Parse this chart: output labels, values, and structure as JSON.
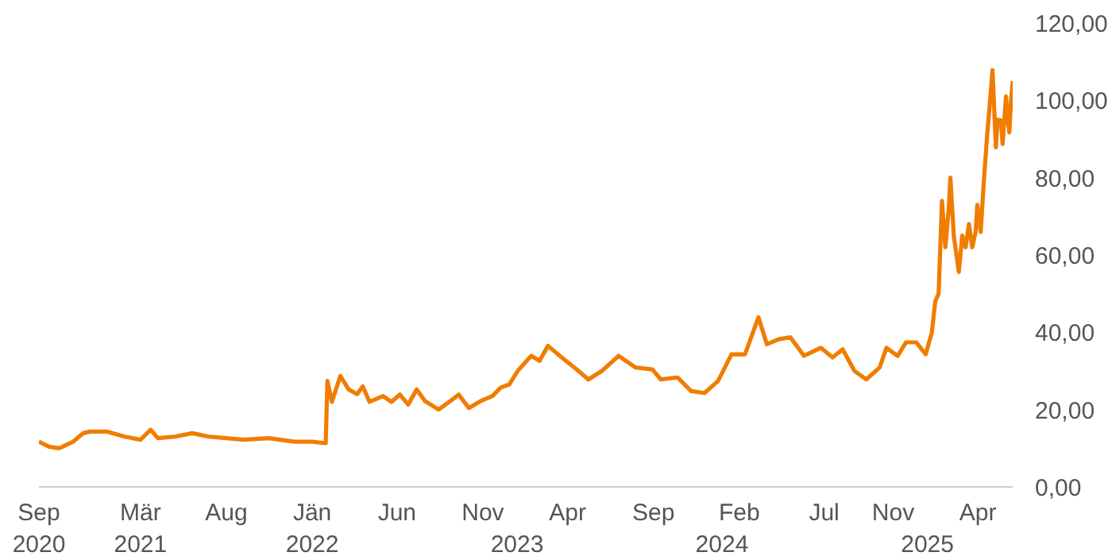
{
  "chart_data": {
    "type": "line",
    "x": [
      "2020-09-01",
      "2020-09-19",
      "2020-10-07",
      "2020-11-01",
      "2020-11-19",
      "2020-12-01",
      "2021-01-01",
      "2021-02-01",
      "2021-03-01",
      "2021-03-19",
      "2021-04-01",
      "2021-05-01",
      "2021-06-01",
      "2021-07-01",
      "2021-08-01",
      "2021-09-01",
      "2021-10-15",
      "2021-12-01",
      "2022-01-01",
      "2022-01-25",
      "2022-01-28",
      "2022-02-05",
      "2022-02-20",
      "2022-03-07",
      "2022-03-22",
      "2022-04-01",
      "2022-04-13",
      "2022-05-07",
      "2022-05-22",
      "2022-06-06",
      "2022-06-21",
      "2022-07-06",
      "2022-07-21",
      "2022-08-14",
      "2022-09-04",
      "2022-09-19",
      "2022-10-07",
      "2022-10-28",
      "2022-11-18",
      "2022-12-03",
      "2022-12-18",
      "2023-01-02",
      "2023-01-26",
      "2023-02-10",
      "2023-02-25",
      "2023-03-18",
      "2023-04-17",
      "2023-05-08",
      "2023-06-01",
      "2023-07-01",
      "2023-07-31",
      "2023-08-30",
      "2023-09-14",
      "2023-10-14",
      "2023-11-07",
      "2023-12-01",
      "2023-12-25",
      "2024-01-18",
      "2024-02-11",
      "2024-03-06",
      "2024-03-21",
      "2024-04-11",
      "2024-05-02",
      "2024-05-26",
      "2024-06-25",
      "2024-07-16",
      "2024-08-03",
      "2024-08-24",
      "2024-09-14",
      "2024-10-08",
      "2024-10-20",
      "2024-11-09",
      "2024-11-24",
      "2024-12-12",
      "2024-12-29",
      "2025-01-09",
      "2025-01-15",
      "2025-01-21",
      "2025-01-27",
      "2025-02-02",
      "2025-02-08",
      "2025-02-11",
      "2025-02-17",
      "2025-02-26",
      "2025-03-04",
      "2025-03-10",
      "2025-03-16",
      "2025-03-22",
      "2025-03-28",
      "2025-03-31",
      "2025-04-06",
      "2025-04-12",
      "2025-04-18",
      "2025-04-21",
      "2025-04-27",
      "2025-04-30",
      "2025-05-03",
      "2025-05-06",
      "2025-05-12",
      "2025-05-15",
      "2025-05-21",
      "2025-05-24",
      "2025-05-27",
      "2025-05-30",
      "2025-06-02"
    ],
    "series": [
      {
        "color": "#f07d00",
        "values": [
          11.7,
          10.4,
          10.0,
          11.7,
          13.9,
          14.3,
          14.3,
          13.0,
          12.2,
          14.8,
          12.6,
          13.0,
          13.9,
          13.0,
          12.6,
          12.2,
          12.6,
          11.7,
          11.7,
          11.3,
          27.4,
          22.0,
          28.7,
          25.2,
          24.0,
          26.0,
          22.0,
          23.5,
          22.0,
          23.9,
          21.3,
          25.2,
          22.2,
          20.0,
          22.2,
          23.9,
          20.4,
          22.2,
          23.5,
          25.7,
          26.5,
          30.0,
          33.9,
          32.6,
          36.5,
          33.9,
          30.4,
          27.8,
          30.0,
          33.9,
          30.9,
          30.4,
          27.8,
          28.3,
          24.8,
          24.3,
          27.4,
          34.3,
          34.3,
          43.9,
          36.9,
          38.2,
          38.7,
          33.9,
          36.0,
          33.5,
          35.6,
          30.0,
          27.8,
          30.9,
          36.0,
          33.9,
          37.4,
          37.4,
          34.3,
          40.0,
          48.0,
          50.0,
          74.0,
          62.0,
          72.0,
          80.0,
          65.0,
          55.6,
          65.0,
          62.0,
          68.0,
          62.0,
          66.0,
          73.0,
          66.0,
          80.0,
          92.0,
          97.0,
          107.8,
          98.0,
          87.8,
          95.0,
          94.8,
          88.7,
          101.0,
          95.0,
          91.7,
          100.0,
          105.0
        ]
      }
    ],
    "xticks": [
      {
        "value": "2020-09-01",
        "label": "Sep"
      },
      {
        "value": "2021-03-01",
        "label": "Mär"
      },
      {
        "value": "2021-08-01",
        "label": "Aug"
      },
      {
        "value": "2022-01-01",
        "label": "Jän"
      },
      {
        "value": "2022-06-01",
        "label": "Jun"
      },
      {
        "value": "2022-11-01",
        "label": "Nov"
      },
      {
        "value": "2023-04-01",
        "label": "Apr"
      },
      {
        "value": "2023-09-01",
        "label": "Sep"
      },
      {
        "value": "2024-02-01",
        "label": "Feb"
      },
      {
        "value": "2024-07-01",
        "label": "Jul"
      },
      {
        "value": "2024-11-01",
        "label": "Nov"
      },
      {
        "value": "2025-04-01",
        "label": "Apr"
      }
    ],
    "xlim": [
      "2020-09-01",
      "2025-06-02"
    ],
    "x2lim": [
      "2020-09-01",
      "2025-06-02"
    ],
    "x2ticks": [
      {
        "value": "2020-09-01",
        "label": "2020"
      },
      {
        "value": "2021-03-01",
        "label": "2021"
      },
      {
        "value": "2022-01-01",
        "label": "2022"
      },
      {
        "value": "2023-01-01",
        "label": "2023"
      },
      {
        "value": "2024-01-01",
        "label": "2024"
      },
      {
        "value": "2025-01-01",
        "label": "2025"
      }
    ],
    "ylim": [
      0,
      120
    ],
    "yticks": [
      {
        "value": 0,
        "label": "0,00"
      },
      {
        "value": 20,
        "label": "20,00"
      },
      {
        "value": 40,
        "label": "40,00"
      },
      {
        "value": 60,
        "label": "60,00"
      },
      {
        "value": 80,
        "label": "80,00"
      },
      {
        "value": 100,
        "label": "100,00"
      },
      {
        "value": 120,
        "label": "120,00"
      }
    ]
  }
}
